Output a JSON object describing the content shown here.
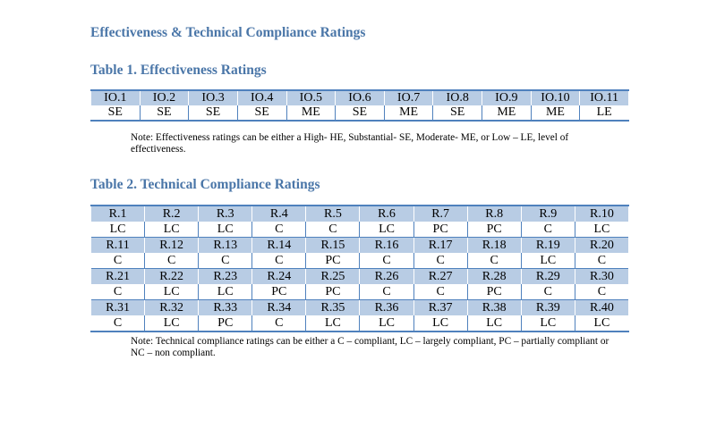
{
  "document_title": "Effectiveness & Technical Compliance Ratings",
  "table1": {
    "title": "Table 1. Effectiveness Ratings",
    "headers": [
      "IO.1",
      "IO.2",
      "IO.3",
      "IO.4",
      "IO.5",
      "IO.6",
      "IO.7",
      "IO.8",
      "IO.9",
      "IO.10",
      "IO.11"
    ],
    "ratings": [
      "SE",
      "SE",
      "SE",
      "SE",
      "ME",
      "SE",
      "ME",
      "SE",
      "ME",
      "ME",
      "LE"
    ],
    "note": "Note: Effectiveness ratings can be either a High- HE, Substantial- SE, Moderate- ME, or Low – LE, level of effectiveness."
  },
  "table2": {
    "title": "Table 2. Technical Compliance Ratings",
    "groups": [
      {
        "headers": [
          "R.1",
          "R.2",
          "R.3",
          "R.4",
          "R.5",
          "R.6",
          "R.7",
          "R.8",
          "R.9",
          "R.10"
        ],
        "ratings": [
          "LC",
          "LC",
          "LC",
          "C",
          "C",
          "LC",
          "PC",
          "PC",
          "C",
          "LC"
        ]
      },
      {
        "headers": [
          "R.11",
          "R.12",
          "R.13",
          "R.14",
          "R.15",
          "R.16",
          "R.17",
          "R.18",
          "R.19",
          "R.20"
        ],
        "ratings": [
          "C",
          "C",
          "C",
          "C",
          "PC",
          "C",
          "C",
          "C",
          "LC",
          "C"
        ]
      },
      {
        "headers": [
          "R.21",
          "R.22",
          "R.23",
          "R.24",
          "R.25",
          "R.26",
          "R.27",
          "R.28",
          "R.29",
          "R.30"
        ],
        "ratings": [
          "C",
          "LC",
          "LC",
          "PC",
          "PC",
          "C",
          "C",
          "PC",
          "C",
          "C"
        ]
      },
      {
        "headers": [
          "R.31",
          "R.32",
          "R.33",
          "R.34",
          "R.35",
          "R.36",
          "R.37",
          "R.38",
          "R.39",
          "R.40"
        ],
        "ratings": [
          "C",
          "LC",
          "PC",
          "C",
          "LC",
          "LC",
          "LC",
          "LC",
          "LC",
          "LC"
        ]
      }
    ],
    "note": "Note: Technical compliance ratings can be either a C – compliant, LC – largely compliant, PC – partially compliant or NC – non compliant."
  },
  "colors": {
    "heading": "#4a76a8",
    "header_fill": "#b8cce4",
    "rule": "#4f81bd"
  }
}
